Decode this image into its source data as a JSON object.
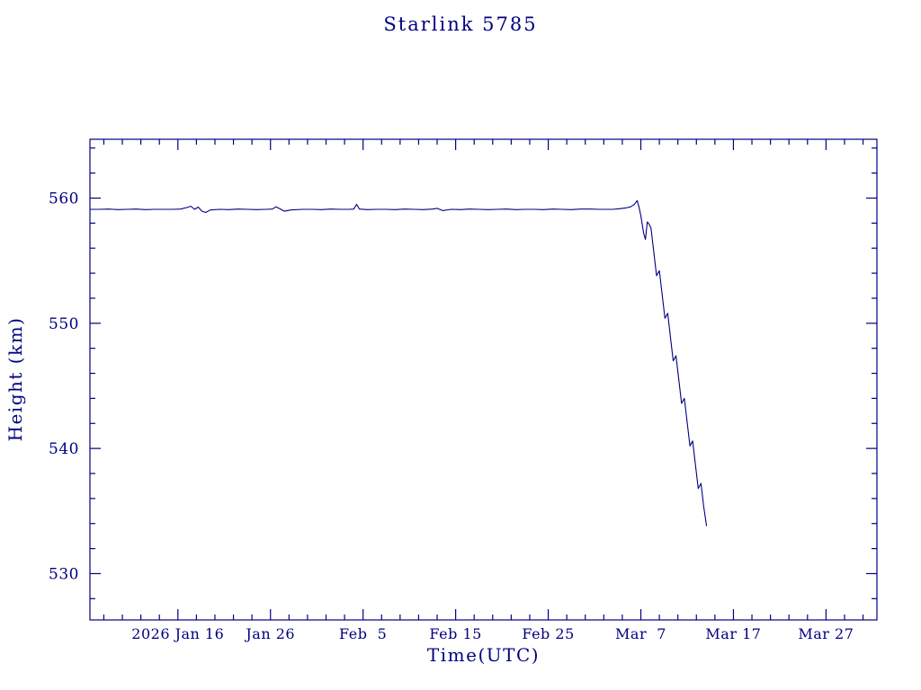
{
  "page": {
    "background": "#ffffff"
  },
  "chart_data": {
    "type": "line",
    "title": "Starlink 5785",
    "xlabel": "Time(UTC)",
    "ylabel": "Height (km)",
    "x_unit": "day of year 2026",
    "xlim": [
      6.5,
      91.5
    ],
    "ylim": [
      526.3,
      564.7
    ],
    "grid": false,
    "legend": "none",
    "x_minor_step": 2,
    "y_minor_step": 2,
    "x_ticks": [
      {
        "value": 16,
        "label": "2026 Jan 16"
      },
      {
        "value": 26,
        "label": "Jan 26"
      },
      {
        "value": 36,
        "label": "Feb  5"
      },
      {
        "value": 46,
        "label": "Feb 15"
      },
      {
        "value": 56,
        "label": "Feb 25"
      },
      {
        "value": 66,
        "label": "Mar  7"
      },
      {
        "value": 76,
        "label": "Mar 17"
      },
      {
        "value": 86,
        "label": "Mar 27"
      }
    ],
    "y_ticks": [
      {
        "value": 530,
        "label": "530"
      },
      {
        "value": 540,
        "label": "540"
      },
      {
        "value": 550,
        "label": "550"
      },
      {
        "value": 560,
        "label": "560"
      }
    ],
    "colors": {
      "line": "#000080",
      "axis": "#000080",
      "text": "#000080",
      "background": "#ffffff"
    },
    "series": [
      {
        "name": "Starlink 5785",
        "points": [
          [
            6.5,
            559.1
          ],
          [
            7.5,
            559.1
          ],
          [
            8.5,
            559.12
          ],
          [
            9.5,
            559.08
          ],
          [
            10.5,
            559.1
          ],
          [
            11.5,
            559.12
          ],
          [
            12.5,
            559.08
          ],
          [
            13.5,
            559.1
          ],
          [
            14.5,
            559.1
          ],
          [
            15.5,
            559.1
          ],
          [
            16.3,
            559.12
          ],
          [
            17.0,
            559.25
          ],
          [
            17.4,
            559.35
          ],
          [
            17.8,
            559.1
          ],
          [
            18.2,
            559.28
          ],
          [
            18.6,
            558.95
          ],
          [
            19.0,
            558.85
          ],
          [
            19.5,
            559.05
          ],
          [
            20.5,
            559.1
          ],
          [
            21.5,
            559.08
          ],
          [
            22.5,
            559.12
          ],
          [
            23.5,
            559.1
          ],
          [
            24.5,
            559.08
          ],
          [
            25.5,
            559.1
          ],
          [
            26.2,
            559.12
          ],
          [
            26.6,
            559.3
          ],
          [
            27.0,
            559.15
          ],
          [
            27.5,
            558.95
          ],
          [
            28.2,
            559.05
          ],
          [
            29.5,
            559.1
          ],
          [
            30.5,
            559.1
          ],
          [
            31.5,
            559.08
          ],
          [
            32.5,
            559.12
          ],
          [
            33.5,
            559.1
          ],
          [
            34.5,
            559.1
          ],
          [
            35.0,
            559.12
          ],
          [
            35.3,
            559.5
          ],
          [
            35.6,
            559.12
          ],
          [
            36.5,
            559.08
          ],
          [
            37.5,
            559.1
          ],
          [
            38.5,
            559.1
          ],
          [
            39.5,
            559.08
          ],
          [
            40.5,
            559.12
          ],
          [
            41.5,
            559.1
          ],
          [
            42.5,
            559.08
          ],
          [
            43.5,
            559.12
          ],
          [
            44.0,
            559.18
          ],
          [
            44.6,
            559.0
          ],
          [
            45.5,
            559.1
          ],
          [
            46.5,
            559.08
          ],
          [
            47.5,
            559.12
          ],
          [
            48.5,
            559.1
          ],
          [
            49.5,
            559.08
          ],
          [
            50.5,
            559.1
          ],
          [
            51.5,
            559.12
          ],
          [
            52.5,
            559.08
          ],
          [
            53.5,
            559.1
          ],
          [
            54.5,
            559.1
          ],
          [
            55.5,
            559.08
          ],
          [
            56.5,
            559.12
          ],
          [
            57.5,
            559.1
          ],
          [
            58.5,
            559.08
          ],
          [
            59.5,
            559.12
          ],
          [
            60.5,
            559.12
          ],
          [
            61.5,
            559.1
          ],
          [
            62.3,
            559.1
          ],
          [
            63.0,
            559.1
          ],
          [
            63.7,
            559.15
          ],
          [
            64.3,
            559.2
          ],
          [
            64.9,
            559.3
          ],
          [
            65.3,
            559.5
          ],
          [
            65.6,
            559.8
          ],
          [
            65.8,
            559.3
          ],
          [
            66.0,
            558.6
          ],
          [
            66.3,
            557.2
          ],
          [
            66.5,
            556.7
          ],
          [
            66.7,
            558.1
          ],
          [
            66.9,
            557.9
          ],
          [
            67.1,
            557.6
          ],
          [
            67.4,
            555.7
          ],
          [
            67.7,
            553.8
          ],
          [
            68.0,
            554.2
          ],
          [
            68.3,
            552.3
          ],
          [
            68.6,
            550.4
          ],
          [
            68.9,
            550.8
          ],
          [
            69.2,
            548.9
          ],
          [
            69.5,
            547.0
          ],
          [
            69.8,
            547.4
          ],
          [
            70.1,
            545.5
          ],
          [
            70.4,
            543.6
          ],
          [
            70.7,
            544.0
          ],
          [
            71.0,
            542.1
          ],
          [
            71.3,
            540.2
          ],
          [
            71.6,
            540.6
          ],
          [
            71.9,
            538.7
          ],
          [
            72.2,
            536.8
          ],
          [
            72.5,
            537.2
          ],
          [
            72.8,
            535.3
          ],
          [
            73.1,
            533.8
          ]
        ]
      }
    ]
  }
}
